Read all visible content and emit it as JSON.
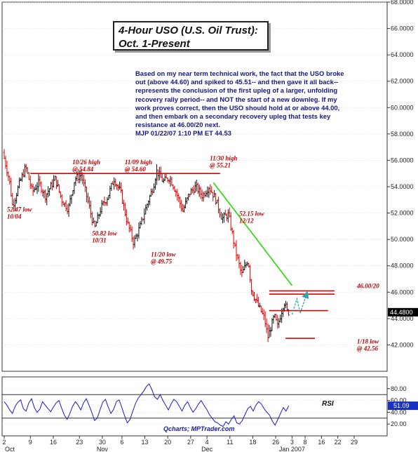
{
  "title": {
    "line1": "4-Hour USO (U.S. Oil Trust):",
    "line2": "Oct. 1-Present"
  },
  "commentary": {
    "lines": [
      "Based on my near term technical work, the fact that the USO broke",
      "out (above 44.60) and spiked to 45.51-- and then gave it all back--",
      "represents the conclusion of the first upleg of a larger, unfolding",
      "recovery rally period-- and NOT the start of a new downleg. If my",
      "work proves correct, then the USO should hold at or above 44.00,",
      "and then embark on a secondary recovery upleg that tests key",
      "resistance at 46.00/20 next.",
      "MJP  01/22/07 1:10 PM ET  44.53"
    ]
  },
  "chart_data": {
    "type": "ohlc",
    "ylim": [
      40,
      68
    ],
    "y_ticks": [
      "42.0000",
      "44.0000",
      "46.0000",
      "48.0000",
      "50.0000",
      "52.0000",
      "54.0000",
      "56.0000",
      "58.0000",
      "60.0000",
      "62.0000",
      "64.0000",
      "66.0000",
      "68.0000"
    ],
    "last_price": "44.4800",
    "x_day_labels": [
      "2",
      "9",
      "16",
      "23",
      "30",
      "6",
      "13",
      "20",
      "27",
      "4",
      "11",
      "18",
      "26",
      "3",
      "8",
      "16",
      "22",
      "29"
    ],
    "x_month_labels": [
      "Oct",
      "Nov",
      "Dec",
      "Jan 2007"
    ],
    "price_path": [
      {
        "t": 0,
        "v": 56.6
      },
      {
        "t": 2,
        "v": 54.5
      },
      {
        "t": 3,
        "v": 52.5
      },
      {
        "t": 5,
        "v": 54.2
      },
      {
        "t": 7,
        "v": 55.5
      },
      {
        "t": 9,
        "v": 53.6
      },
      {
        "t": 11,
        "v": 54.3
      },
      {
        "t": 13,
        "v": 53.3
      },
      {
        "t": 16,
        "v": 54.6
      },
      {
        "t": 18,
        "v": 53.0
      },
      {
        "t": 20,
        "v": 52.3
      },
      {
        "t": 22,
        "v": 54.6
      },
      {
        "t": 24,
        "v": 54.9
      },
      {
        "t": 26,
        "v": 52.9
      },
      {
        "t": 28,
        "v": 50.8
      },
      {
        "t": 30,
        "v": 52.4
      },
      {
        "t": 32,
        "v": 53.2
      },
      {
        "t": 34,
        "v": 54.6
      },
      {
        "t": 36,
        "v": 53.6
      },
      {
        "t": 38,
        "v": 51.3
      },
      {
        "t": 40,
        "v": 49.75
      },
      {
        "t": 42,
        "v": 51.0
      },
      {
        "t": 44,
        "v": 52.6
      },
      {
        "t": 46,
        "v": 54.0
      },
      {
        "t": 47,
        "v": 55.2
      },
      {
        "t": 49,
        "v": 54.4
      },
      {
        "t": 51,
        "v": 54.7
      },
      {
        "t": 53,
        "v": 53.6
      },
      {
        "t": 55,
        "v": 52.15
      },
      {
        "t": 57,
        "v": 53.5
      },
      {
        "t": 59,
        "v": 54.0
      },
      {
        "t": 61,
        "v": 53.3
      },
      {
        "t": 63,
        "v": 54.0
      },
      {
        "t": 65,
        "v": 53.1
      },
      {
        "t": 67,
        "v": 51.6
      },
      {
        "t": 69,
        "v": 51.9
      },
      {
        "t": 71,
        "v": 49.3
      },
      {
        "t": 73,
        "v": 47.3
      },
      {
        "t": 75,
        "v": 48.5
      },
      {
        "t": 76,
        "v": 46.2
      },
      {
        "t": 78,
        "v": 45.0
      },
      {
        "t": 80,
        "v": 44.0
      },
      {
        "t": 81,
        "v": 42.56
      },
      {
        "t": 83,
        "v": 44.2
      },
      {
        "t": 84,
        "v": 43.4
      },
      {
        "t": 86,
        "v": 45.3
      },
      {
        "t": 87,
        "v": 44.48
      }
    ],
    "reference_lines": [
      {
        "type": "horizontal",
        "value": 55.0,
        "color": "#dd0000"
      },
      {
        "type": "horizontal",
        "value": 46.1,
        "color": "#dd0000"
      },
      {
        "type": "horizontal",
        "value": 45.85,
        "color": "#dd0000"
      },
      {
        "type": "horizontal",
        "value": 44.6,
        "color": "#dd0000"
      },
      {
        "type": "horizontal",
        "value": 42.5,
        "color": "#dd0000"
      },
      {
        "type": "trendline",
        "from": {
          "t": 64,
          "v": 54.3
        },
        "to": {
          "t": 88,
          "v": 46.5
        },
        "color": "#22dd00"
      }
    ],
    "projection_arrow": {
      "color": "#22aaaa"
    },
    "annotations": [
      {
        "text": [
          "52.47 low",
          "10/04"
        ],
        "t": 0,
        "v": 52.1
      },
      {
        "text": [
          "10/26 high",
          "@ 54.84"
        ],
        "t": 20,
        "v": 55.7
      },
      {
        "text": [
          "50.82 low",
          "10/31"
        ],
        "t": 26,
        "v": 50.3
      },
      {
        "text": [
          "11/09 high",
          "@ 54.60"
        ],
        "t": 36,
        "v": 55.7
      },
      {
        "text": [
          "11/20 low",
          "@ 49.75"
        ],
        "t": 44,
        "v": 48.7
      },
      {
        "text": [
          "11/30 high",
          "@ 55.21"
        ],
        "t": 62,
        "v": 56.0
      },
      {
        "text": [
          "52.15 low",
          "12/12"
        ],
        "t": 71,
        "v": 51.8
      },
      {
        "text": [
          "46.00/20"
        ],
        "t": 107,
        "v": 46.3
      },
      {
        "text": [
          "1/18 low",
          "@ 42.56"
        ],
        "t": 107,
        "v": 42.1
      }
    ],
    "rsi": {
      "label": "RSI",
      "ylim": [
        0,
        100
      ],
      "y_ticks": [
        "20.00",
        "40.00",
        "60.00",
        "80.00"
      ],
      "reference_levels": [
        70,
        30
      ],
      "last_value": "51.09",
      "values": [
        58,
        52,
        44,
        38,
        50,
        57,
        61,
        46,
        42,
        56,
        63,
        48,
        40,
        45,
        58,
        52,
        46,
        41,
        49,
        56,
        60,
        47,
        35,
        28,
        38,
        50,
        58,
        52,
        44,
        56,
        63,
        52,
        40,
        26,
        30,
        44,
        57,
        62,
        49,
        38,
        45,
        58,
        61,
        48,
        34,
        22,
        28,
        42,
        55,
        64,
        70,
        76,
        84,
        88,
        78,
        66,
        62,
        70,
        60,
        52,
        44,
        54,
        62,
        58,
        50,
        42,
        52,
        58,
        48,
        40,
        46,
        54,
        60,
        52,
        45,
        36,
        30,
        24,
        22,
        18,
        16,
        24,
        20,
        28,
        34,
        22,
        20,
        26,
        36,
        46,
        50,
        42,
        52,
        58,
        54,
        46,
        40,
        35,
        25,
        18,
        28,
        38,
        48,
        42,
        51
      ]
    }
  },
  "footer": {
    "credit": "Qcharts; MPTrader.com"
  },
  "colors": {
    "bar_up": "#111111",
    "bar_down": "#dd0000",
    "annotation": "#c00000",
    "commentary": "#16168a",
    "rsi_line": "#1a1ad0",
    "price_tag": "#000000",
    "rsi_tag": "#1a30c0"
  }
}
